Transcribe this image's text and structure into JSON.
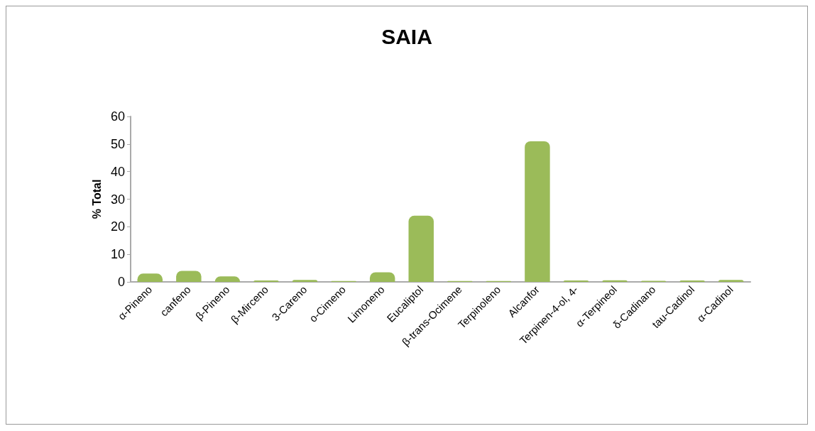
{
  "chart_data": {
    "type": "bar",
    "title": "SAIA",
    "ylabel": "% Total",
    "categories": [
      "α-Pineno",
      "canfeno",
      "β-Pineno",
      "β-Mirceno",
      "3-Careno",
      "o-Cimeno",
      "Limoneno",
      "Eucaliptol",
      "β-trans-Ocimene",
      "Terpinoleno",
      "Alcanfor",
      "Terpinen-4-ol, 4-",
      "α-Terpineol",
      "δ-Cadinano",
      "tau-Cadinol",
      "α-Cadinol"
    ],
    "values": [
      3,
      4,
      2,
      0.5,
      0.7,
      0.3,
      3.5,
      24,
      0.3,
      0.3,
      51,
      0.5,
      0.6,
      0.4,
      0.5,
      0.7
    ],
    "color": "#9bbb59",
    "ylim": [
      0,
      60
    ],
    "yticks": [
      0,
      10,
      20,
      30,
      40,
      50,
      60
    ],
    "grid": false
  }
}
